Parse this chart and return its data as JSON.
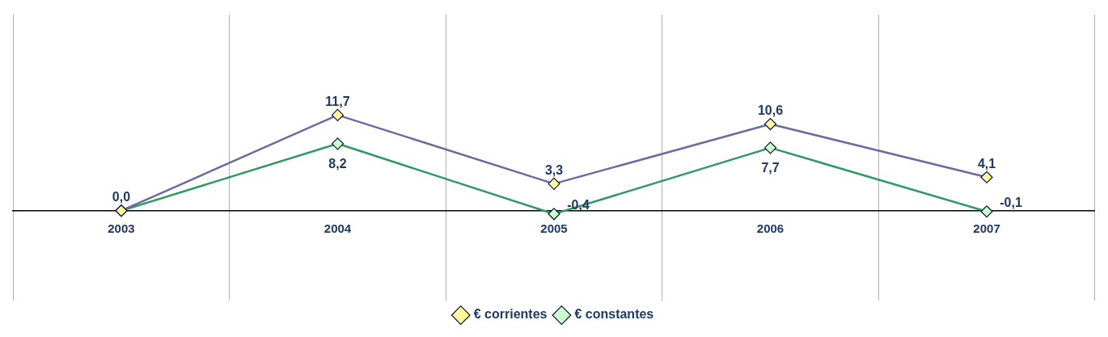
{
  "chart_data": {
    "type": "line",
    "categories": [
      "2003",
      "2004",
      "2005",
      "2006",
      "2007"
    ],
    "series": [
      {
        "name": "€ corrientes",
        "color": "#6b6ba3",
        "values": [
          0,
          11.7,
          3.3,
          10.6,
          4.1
        ],
        "value_labels": [
          "0,0",
          "11,7",
          "3,3",
          "10,6",
          "4,1"
        ]
      },
      {
        "name": "€ constantes",
        "color": "#2e9a62",
        "values": [
          0,
          8.2,
          -0.4,
          7.7,
          -0.1
        ],
        "value_labels": [
          null,
          "8,2",
          "-0,4",
          "7,7",
          "-0,1"
        ]
      }
    ],
    "ylim": [
      -11,
      24
    ],
    "grid": "x",
    "legend": "bottom",
    "marker": "diamond",
    "line_style": "solid"
  }
}
